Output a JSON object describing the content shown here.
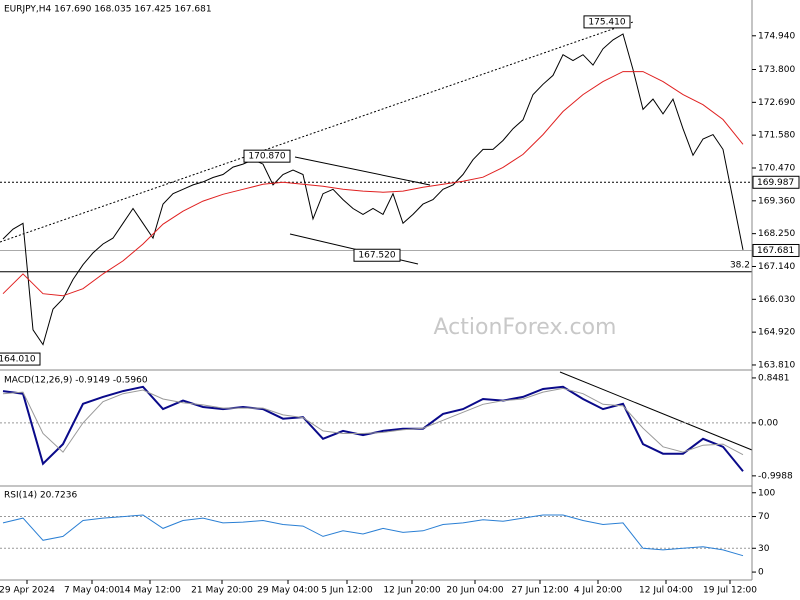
{
  "chart_data": [
    {
      "type": "line",
      "title": "EURJPY,H4 167.690 168.035 167.425 167.681",
      "watermark": "ActionForex.com",
      "ylim": [
        163.64,
        176.15
      ],
      "yticks": [
        {
          "value": 174.94,
          "label": "174.940"
        },
        {
          "value": 173.8,
          "label": "173.800"
        },
        {
          "value": 172.69,
          "label": "172.690"
        },
        {
          "value": 171.58,
          "label": "171.580"
        },
        {
          "value": 170.47,
          "label": "170.470"
        },
        {
          "value": 169.36,
          "label": "169.360"
        },
        {
          "value": 168.25,
          "label": "168.250"
        },
        {
          "value": 167.14,
          "label": "167.140"
        },
        {
          "value": 166.03,
          "label": "166.030"
        },
        {
          "value": 164.92,
          "label": "164.920"
        },
        {
          "value": 163.81,
          "label": "163.810"
        }
      ],
      "series": [
        {
          "name": "Close",
          "color": "#000000",
          "values": [
            168.07,
            168.4,
            168.6,
            165.0,
            164.5,
            165.7,
            166.05,
            166.7,
            167.2,
            167.6,
            167.9,
            168.1,
            168.6,
            169.1,
            168.6,
            168.1,
            169.25,
            169.6,
            169.75,
            169.9,
            170.0,
            170.15,
            170.25,
            170.5,
            170.6,
            170.75,
            170.6,
            169.9,
            170.25,
            170.4,
            170.25,
            168.75,
            169.6,
            169.75,
            169.4,
            169.1,
            168.9,
            169.1,
            168.9,
            169.6,
            168.6,
            168.9,
            169.25,
            169.4,
            169.75,
            169.9,
            170.25,
            170.75,
            171.1,
            171.1,
            171.4,
            171.8,
            172.1,
            172.95,
            173.3,
            173.6,
            174.3,
            174.1,
            174.3,
            173.95,
            174.5,
            174.8,
            175.0,
            173.8,
            172.45,
            172.8,
            172.3,
            172.8,
            171.8,
            170.9,
            171.45,
            171.6,
            171.1,
            169.4,
            167.7
          ]
        },
        {
          "name": "MA",
          "color": "#e02020",
          "x": [
            0,
            2,
            4,
            6,
            8,
            10,
            12,
            14,
            16,
            18,
            20,
            22,
            24,
            26,
            28,
            30,
            32,
            34,
            36,
            38,
            40,
            42,
            44,
            46,
            48,
            50,
            52,
            54,
            56,
            58,
            60,
            62,
            64,
            66,
            68,
            70,
            72,
            74
          ],
          "values": [
            166.22,
            166.89,
            166.22,
            166.15,
            166.39,
            166.89,
            167.33,
            167.9,
            168.57,
            169.01,
            169.35,
            169.58,
            169.75,
            169.92,
            169.99,
            169.92,
            169.85,
            169.75,
            169.69,
            169.65,
            169.69,
            169.82,
            169.92,
            170.02,
            170.16,
            170.49,
            170.93,
            171.6,
            172.38,
            172.95,
            173.39,
            173.73,
            173.73,
            173.39,
            172.95,
            172.61,
            172.11,
            171.27
          ]
        }
      ],
      "annotations": [
        {
          "text": "175.410",
          "value": 175.41
        },
        {
          "text": "170.870",
          "value": 170.87
        },
        {
          "text": "167.520",
          "value": 167.52
        },
        {
          "text": "164.010",
          "value": 164.01
        }
      ],
      "levels": [
        {
          "value": 169.987,
          "label": "169.987",
          "style": "dashed"
        },
        {
          "value": 167.681,
          "label": "167.681",
          "style": "solid"
        }
      ],
      "fib_level": 166.96,
      "fib_text": "38.2"
    },
    {
      "type": "line",
      "title": "MACD(12,26,9) -0.9149 -0.5960",
      "ylim": [
        -1.19,
        0.96
      ],
      "yticks": [
        0.8481,
        {
          "value": 0,
          "label": "0.00"
        },
        -0.9988
      ],
      "x": [
        0,
        2,
        4,
        6,
        8,
        10,
        12,
        14,
        16,
        18,
        20,
        22,
        24,
        26,
        28,
        30,
        32,
        34,
        36,
        38,
        40,
        42,
        44,
        46,
        48,
        50,
        52,
        54,
        56,
        58,
        60,
        62,
        64,
        66,
        68,
        70,
        72,
        74
      ],
      "series": [
        {
          "name": "MACD",
          "color": "#0a0a8a",
          "values": [
            0.6,
            0.55,
            -0.77,
            -0.4,
            0.36,
            0.49,
            0.6,
            0.68,
            0.26,
            0.42,
            0.3,
            0.26,
            0.3,
            0.26,
            0.08,
            0.11,
            -0.3,
            -0.15,
            -0.23,
            -0.15,
            -0.11,
            -0.11,
            0.17,
            0.26,
            0.45,
            0.42,
            0.49,
            0.64,
            0.68,
            0.45,
            0.26,
            0.36,
            -0.4,
            -0.58,
            -0.58,
            -0.3,
            -0.45,
            -0.91
          ]
        },
        {
          "name": "Signal",
          "color": "#999999",
          "values": [
            0.55,
            0.58,
            -0.2,
            -0.55,
            0.0,
            0.4,
            0.55,
            0.62,
            0.45,
            0.38,
            0.34,
            0.28,
            0.28,
            0.28,
            0.15,
            0.1,
            -0.15,
            -0.2,
            -0.2,
            -0.18,
            -0.13,
            -0.1,
            0.05,
            0.2,
            0.35,
            0.42,
            0.45,
            0.58,
            0.65,
            0.55,
            0.35,
            0.32,
            -0.1,
            -0.45,
            -0.55,
            -0.42,
            -0.4,
            -0.6
          ]
        }
      ]
    },
    {
      "type": "line",
      "title": "RSI(14) 20.7236",
      "ylim": [
        -10,
        106
      ],
      "yticks": [
        100,
        70,
        30,
        0
      ],
      "ref_lines": [
        70,
        30
      ],
      "x": [
        0,
        2,
        4,
        6,
        8,
        10,
        12,
        14,
        16,
        18,
        20,
        22,
        24,
        26,
        28,
        30,
        32,
        34,
        36,
        38,
        40,
        42,
        44,
        46,
        48,
        50,
        52,
        54,
        56,
        58,
        60,
        62,
        64,
        66,
        68,
        70,
        72,
        74
      ],
      "series": [
        {
          "name": "RSI",
          "color": "#2a7fd4",
          "values": [
            62,
            68,
            40,
            45,
            65,
            68,
            70,
            72,
            55,
            65,
            68,
            62,
            63,
            65,
            60,
            58,
            45,
            52,
            48,
            55,
            50,
            52,
            60,
            62,
            66,
            64,
            68,
            72,
            72,
            65,
            60,
            62,
            30,
            28,
            30,
            32,
            28,
            20.7
          ]
        }
      ],
      "xticks": [
        {
          "value": 2.4,
          "label": "29 Apr 2024"
        },
        {
          "value": 8.9,
          "label": "7 May 04:00"
        },
        {
          "value": 14.7,
          "label": "14 May 12:00"
        },
        {
          "value": 21.9,
          "label": "21 May 20:00"
        },
        {
          "value": 28.5,
          "label": "29 May 04:00"
        },
        {
          "value": 34.4,
          "label": "5 Jun 12:00"
        },
        {
          "value": 40.9,
          "label": "12 Jun 20:00"
        },
        {
          "value": 47.2,
          "label": "20 Jun 04:00"
        },
        {
          "value": 53.7,
          "label": "27 Jun 12:00"
        },
        {
          "value": 59.5,
          "label": "4 Jul 20:00"
        },
        {
          "value": 66.3,
          "label": "12 Jul 04:00"
        },
        {
          "value": 72.7,
          "label": "19 Jul 12:00"
        }
      ]
    }
  ]
}
